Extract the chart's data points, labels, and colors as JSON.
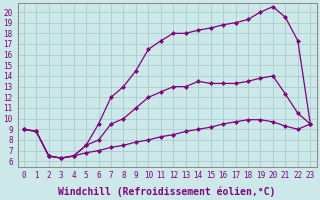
{
  "background_color": "#cce8e8",
  "grid_color": "#aacccc",
  "line_color": "#800080",
  "marker": "D",
  "markersize": 2.5,
  "linewidth": 0.9,
  "xlabel": "Windchill (Refroidissement éolien,°C)",
  "xlabel_fontsize": 7,
  "tick_fontsize": 5.5,
  "xlim": [
    -0.5,
    23.5
  ],
  "ylim": [
    5.5,
    20.8
  ],
  "xticks": [
    0,
    1,
    2,
    3,
    4,
    5,
    6,
    7,
    8,
    9,
    10,
    11,
    12,
    13,
    14,
    15,
    16,
    17,
    18,
    19,
    20,
    21,
    22,
    23
  ],
  "yticks": [
    6,
    7,
    8,
    9,
    10,
    11,
    12,
    13,
    14,
    15,
    16,
    17,
    18,
    19,
    20
  ],
  "curve_top_x": [
    0,
    1,
    2,
    3,
    4,
    5,
    6,
    7,
    8,
    9,
    10,
    11,
    12,
    13,
    14,
    15,
    16,
    17,
    18,
    19,
    20,
    21,
    22,
    23
  ],
  "curve_top_y": [
    9,
    8.8,
    6.5,
    6.3,
    6.5,
    7.5,
    9.5,
    12,
    13,
    14.5,
    16.5,
    17.3,
    18,
    18,
    18.3,
    18.5,
    18.8,
    19,
    19.3,
    20,
    20.5,
    19.5,
    17.3,
    9.5
  ],
  "curve_mid_x": [
    0,
    1,
    2,
    3,
    4,
    5,
    6,
    7,
    8,
    9,
    10,
    11,
    12,
    13,
    14,
    15,
    16,
    17,
    18,
    19,
    20,
    21,
    22,
    23
  ],
  "curve_mid_y": [
    9,
    8.8,
    6.5,
    6.3,
    6.5,
    7.5,
    8,
    9.5,
    10,
    11,
    12,
    12.5,
    13,
    13,
    13.5,
    13.3,
    13.3,
    13.3,
    13.5,
    13.8,
    14,
    12.3,
    10.5,
    9.5
  ],
  "curve_bot_x": [
    0,
    1,
    2,
    3,
    4,
    5,
    6,
    7,
    8,
    9,
    10,
    11,
    12,
    13,
    14,
    15,
    16,
    17,
    18,
    19,
    20,
    21,
    22,
    23
  ],
  "curve_bot_y": [
    9,
    8.8,
    6.5,
    6.3,
    6.5,
    6.8,
    7.0,
    7.3,
    7.5,
    7.8,
    8.0,
    8.3,
    8.5,
    8.8,
    9.0,
    9.2,
    9.5,
    9.7,
    9.9,
    9.9,
    9.7,
    9.3,
    9.0,
    9.5
  ]
}
